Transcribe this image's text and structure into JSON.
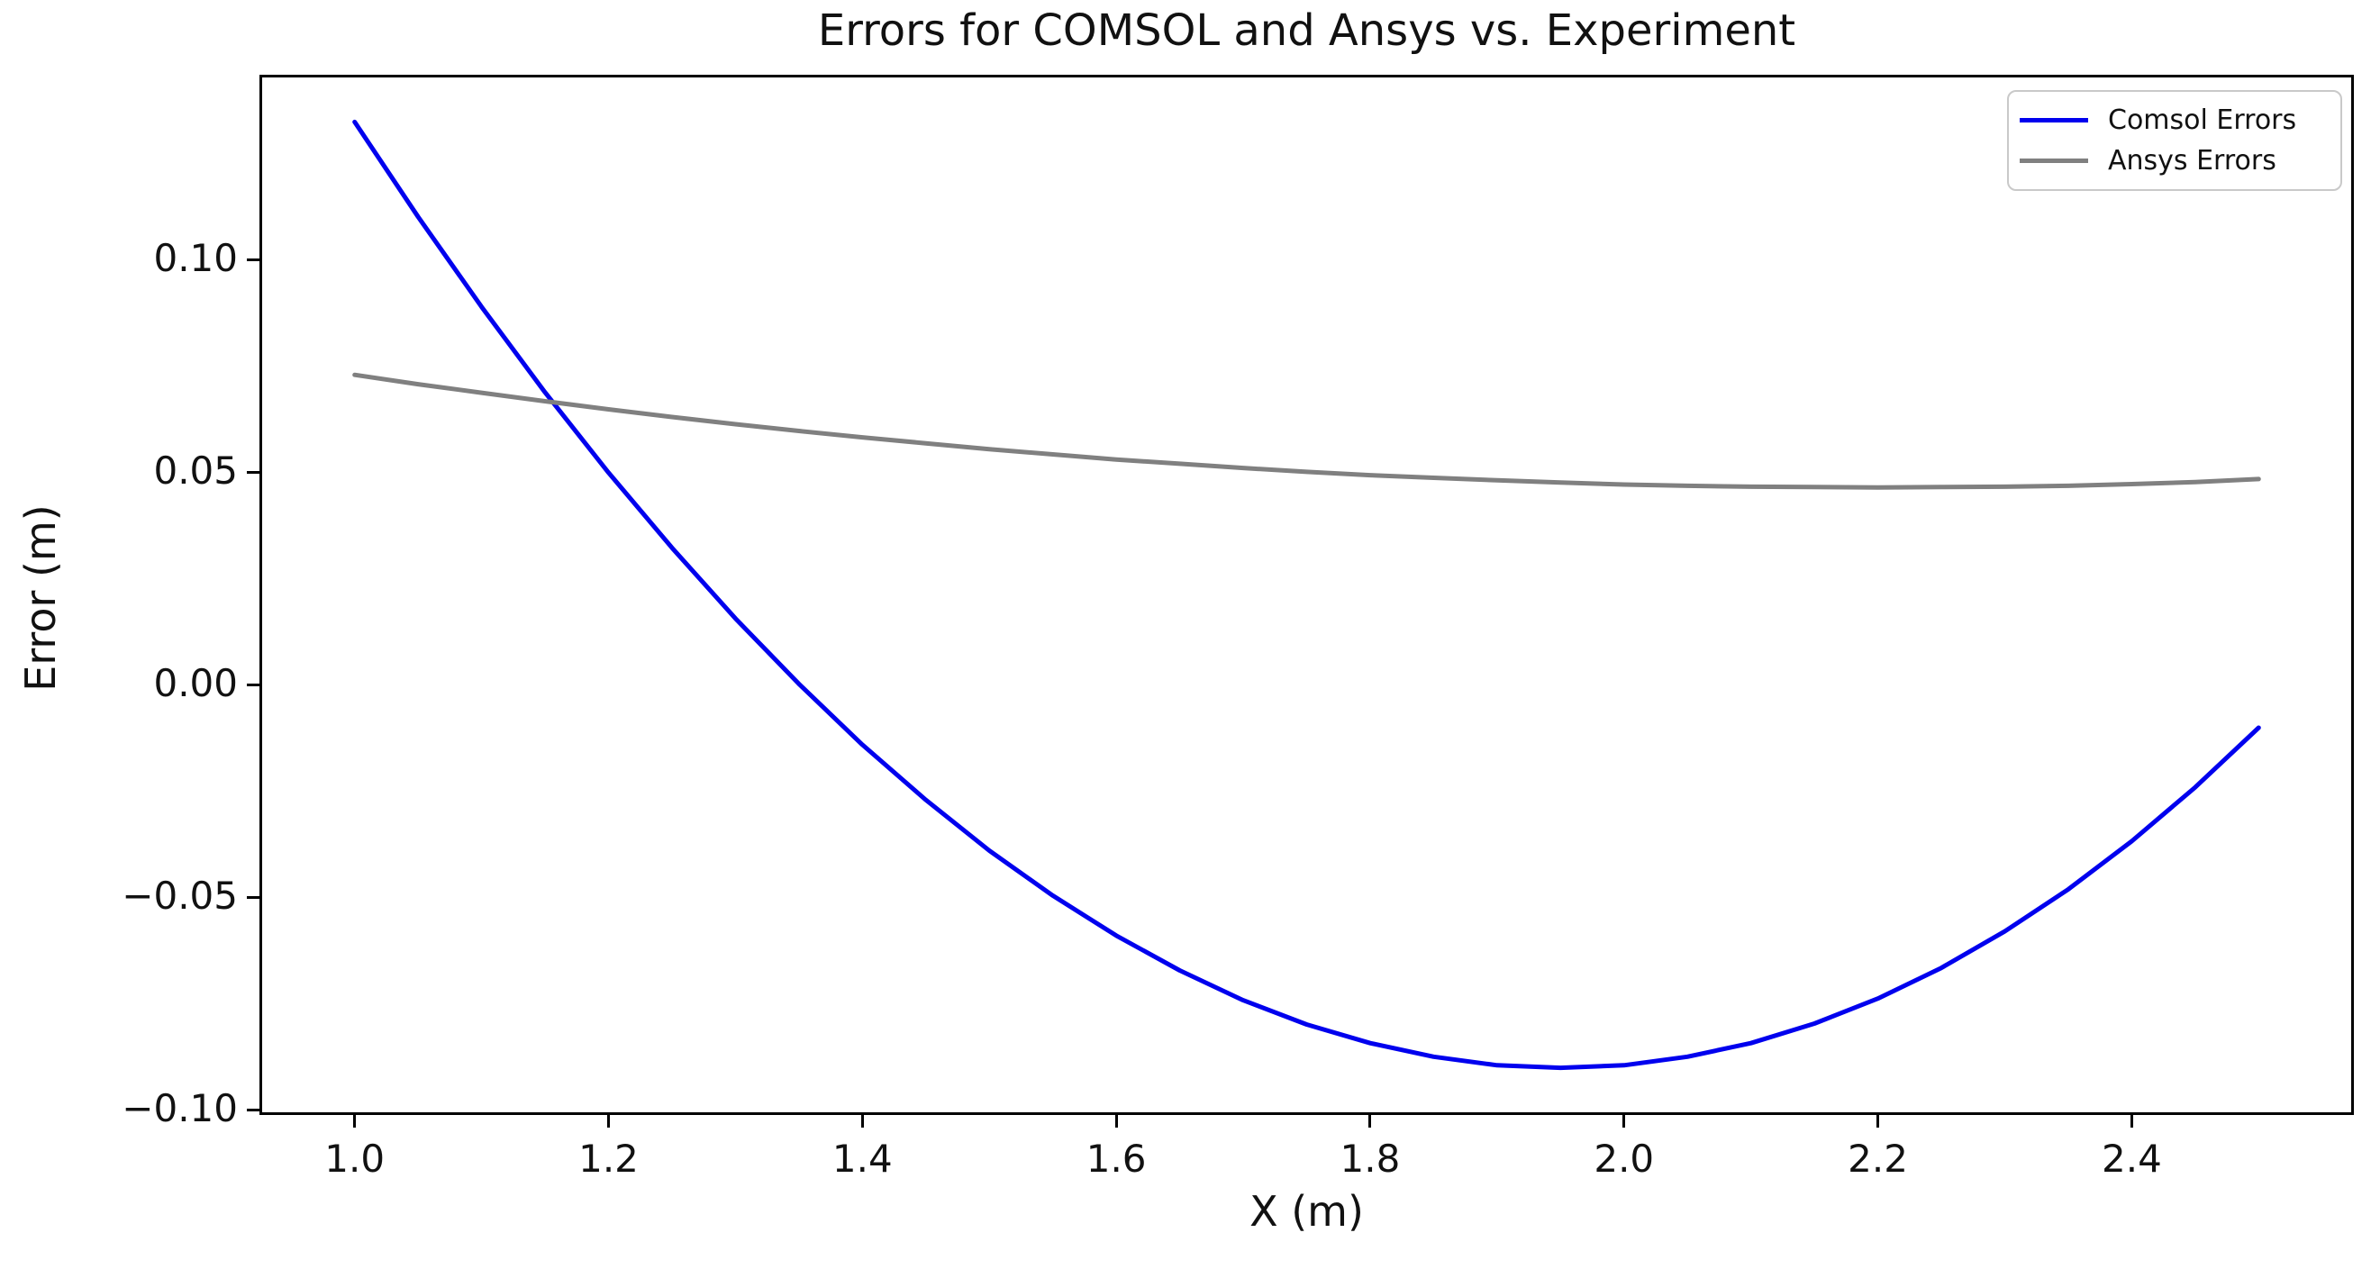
{
  "chart_data": {
    "type": "line",
    "title": "Errors for COMSOL and Ansys vs. Experiment",
    "xlabel": "X (m)",
    "ylabel": "Error (m)",
    "xlim": [
      0.925,
      2.575
    ],
    "ylim": [
      -0.1011,
      0.1436
    ],
    "grid": false,
    "xticks": {
      "values": [
        1.0,
        1.2,
        1.4,
        1.6,
        1.8,
        2.0,
        2.2,
        2.4
      ],
      "labels": [
        "1.0",
        "1.2",
        "1.4",
        "1.6",
        "1.8",
        "2.0",
        "2.2",
        "2.4"
      ]
    },
    "yticks": {
      "values": [
        -0.1,
        -0.05,
        0.0,
        0.05,
        0.1
      ],
      "labels": [
        "−0.10",
        "−0.05",
        "0.00",
        "0.05",
        "0.10"
      ]
    },
    "legend": {
      "position": "upper right",
      "entries": [
        {
          "label": "Comsol Errors",
          "color": "#0000EE"
        },
        {
          "label": "Ansys Errors",
          "color": "#808080"
        }
      ]
    },
    "x": [
      1.0,
      1.05,
      1.1,
      1.15,
      1.2,
      1.25,
      1.3,
      1.35,
      1.4,
      1.45,
      1.5,
      1.55,
      1.6,
      1.65,
      1.7,
      1.75,
      1.8,
      1.85,
      1.9,
      1.95,
      2.0,
      2.05,
      2.1,
      2.15,
      2.2,
      2.25,
      2.3,
      2.35,
      2.4,
      2.45,
      2.5
    ],
    "series": [
      {
        "name": "Comsol Errors",
        "color": "#0000EE",
        "values": [
          0.1325,
          0.1102,
          0.089,
          0.0689,
          0.05,
          0.0323,
          0.0157,
          0.0003,
          -0.014,
          -0.027,
          -0.0389,
          -0.0495,
          -0.0589,
          -0.0671,
          -0.0741,
          -0.0798,
          -0.0842,
          -0.0874,
          -0.0894,
          -0.09,
          -0.0894,
          -0.0874,
          -0.0842,
          -0.0796,
          -0.0737,
          -0.0665,
          -0.0579,
          -0.048,
          -0.0367,
          -0.024,
          -0.01
        ]
      },
      {
        "name": "Ansys Errors",
        "color": "#808080",
        "values": [
          0.073,
          0.0708,
          0.0688,
          0.0668,
          0.0649,
          0.0631,
          0.0614,
          0.0598,
          0.0583,
          0.0569,
          0.0555,
          0.0543,
          0.0531,
          0.0521,
          0.0511,
          0.0502,
          0.0494,
          0.0488,
          0.0482,
          0.0477,
          0.0472,
          0.0469,
          0.0467,
          0.0466,
          0.0465,
          0.0466,
          0.0467,
          0.0469,
          0.0473,
          0.0478,
          0.0485
        ]
      }
    ]
  }
}
